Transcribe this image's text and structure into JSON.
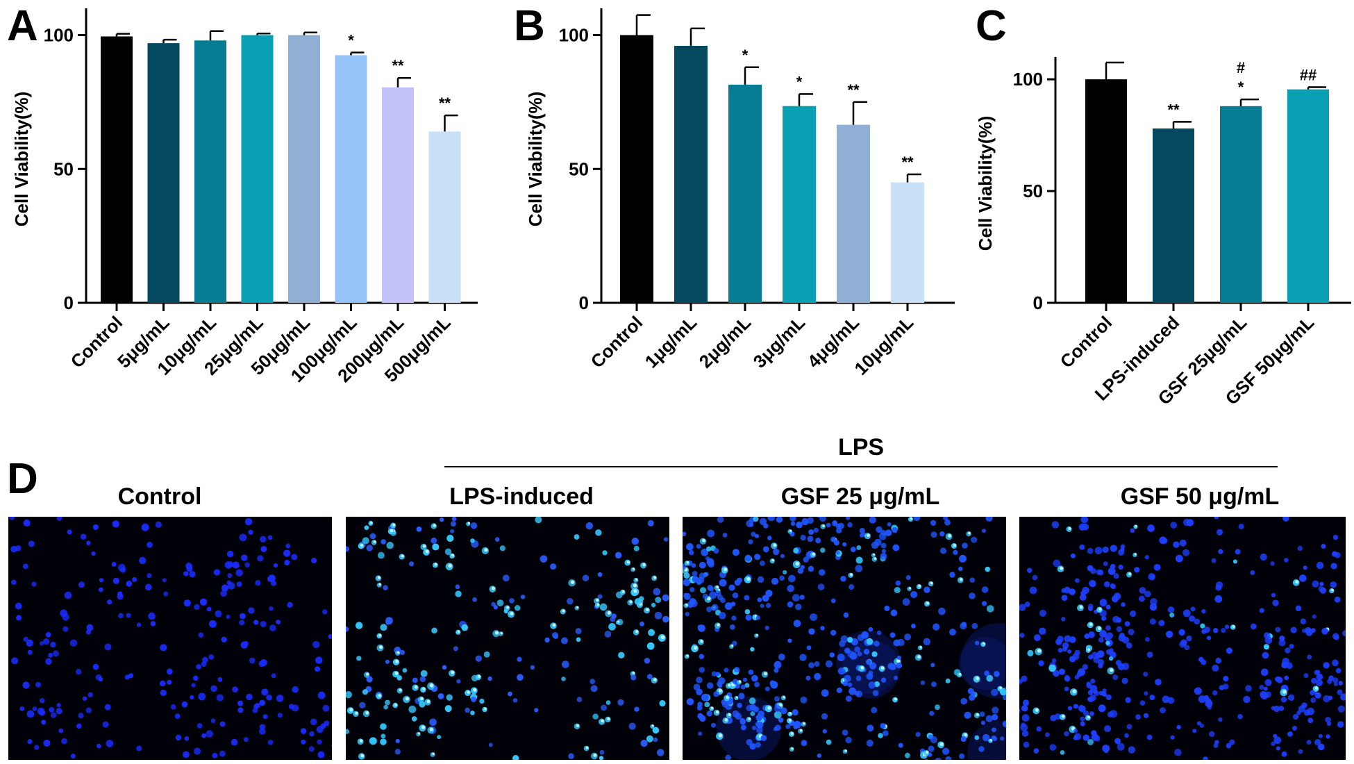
{
  "panel_letters": {
    "a": "A",
    "b": "B",
    "c": "C",
    "d": "D"
  },
  "chart_data": [
    {
      "type": "bar",
      "panel": "A",
      "ylabel": "Cell Viability(%)",
      "ylim": [
        0,
        110
      ],
      "yticks": [
        0,
        50,
        100
      ],
      "categories": [
        "Control",
        "5μg/mL",
        "10μg/mL",
        "25μg/mL",
        "50μg/mL",
        "100μg/mL",
        "200μg/mL",
        "500μg/mL"
      ],
      "values": [
        99.5,
        97,
        98,
        100,
        100,
        92.5,
        80.5,
        64
      ],
      "errors": [
        1,
        1.3,
        3.5,
        0.6,
        1,
        1,
        3.5,
        6
      ],
      "significance": [
        "",
        "",
        "",
        "",
        "",
        "*",
        "**",
        "**"
      ],
      "colors": [
        "#000000",
        "#05495f",
        "#087c92",
        "#0aa0b4",
        "#8fafd4",
        "#95c3f8",
        "#c4c3f9",
        "#c9e0f8"
      ]
    },
    {
      "type": "bar",
      "panel": "B",
      "ylabel": "Cell Viability(%)",
      "ylim": [
        0,
        110
      ],
      "yticks": [
        0,
        50,
        100
      ],
      "categories": [
        "Control",
        "1μg/mL",
        "2μg/mL",
        "3μg/mL",
        "4μg/mL",
        "10μg/mL"
      ],
      "values": [
        100,
        96,
        81.5,
        73.5,
        66.5,
        45
      ],
      "errors": [
        7.5,
        6.5,
        6.5,
        4.5,
        8.5,
        3
      ],
      "significance": [
        "",
        "",
        "*",
        "*",
        "**",
        "**"
      ],
      "colors": [
        "#000000",
        "#05495f",
        "#087c92",
        "#0aa0b4",
        "#8fafd4",
        "#c9e0f8"
      ]
    },
    {
      "type": "bar",
      "panel": "C",
      "ylabel": "Cell Viability(%)",
      "ylim": [
        0,
        110
      ],
      "yticks": [
        0,
        50,
        100
      ],
      "categories": [
        "Control",
        "LPS-induced",
        "GSF 25μg/mL",
        "GSF 50μg/mL"
      ],
      "values": [
        100,
        78,
        88,
        95.5
      ],
      "errors": [
        7.5,
        3,
        3,
        1
      ],
      "significance": [
        "",
        "**",
        "*",
        ""
      ],
      "significance_vs_lps": [
        "",
        "",
        "#",
        "##"
      ],
      "colors": [
        "#000000",
        "#05495f",
        "#087c92",
        "#0aa0b4"
      ]
    }
  ],
  "microscopy": {
    "group_label": "LPS",
    "panels": [
      {
        "title": "Control",
        "cell_color": "#1a2cff",
        "cell_count": 230,
        "bright_spots": 0.0,
        "haze": false
      },
      {
        "title": "LPS-induced",
        "cell_color": "#2a5cff",
        "cell_count": 260,
        "bright_spots": 0.6,
        "haze": false
      },
      {
        "title": "GSF 25 μg/mL",
        "cell_color": "#1f55ff",
        "cell_count": 560,
        "bright_spots": 0.25,
        "haze": true
      },
      {
        "title": "GSF 50 μg/mL",
        "cell_color": "#1d3fff",
        "cell_count": 420,
        "bright_spots": 0.1,
        "haze": false
      }
    ]
  }
}
